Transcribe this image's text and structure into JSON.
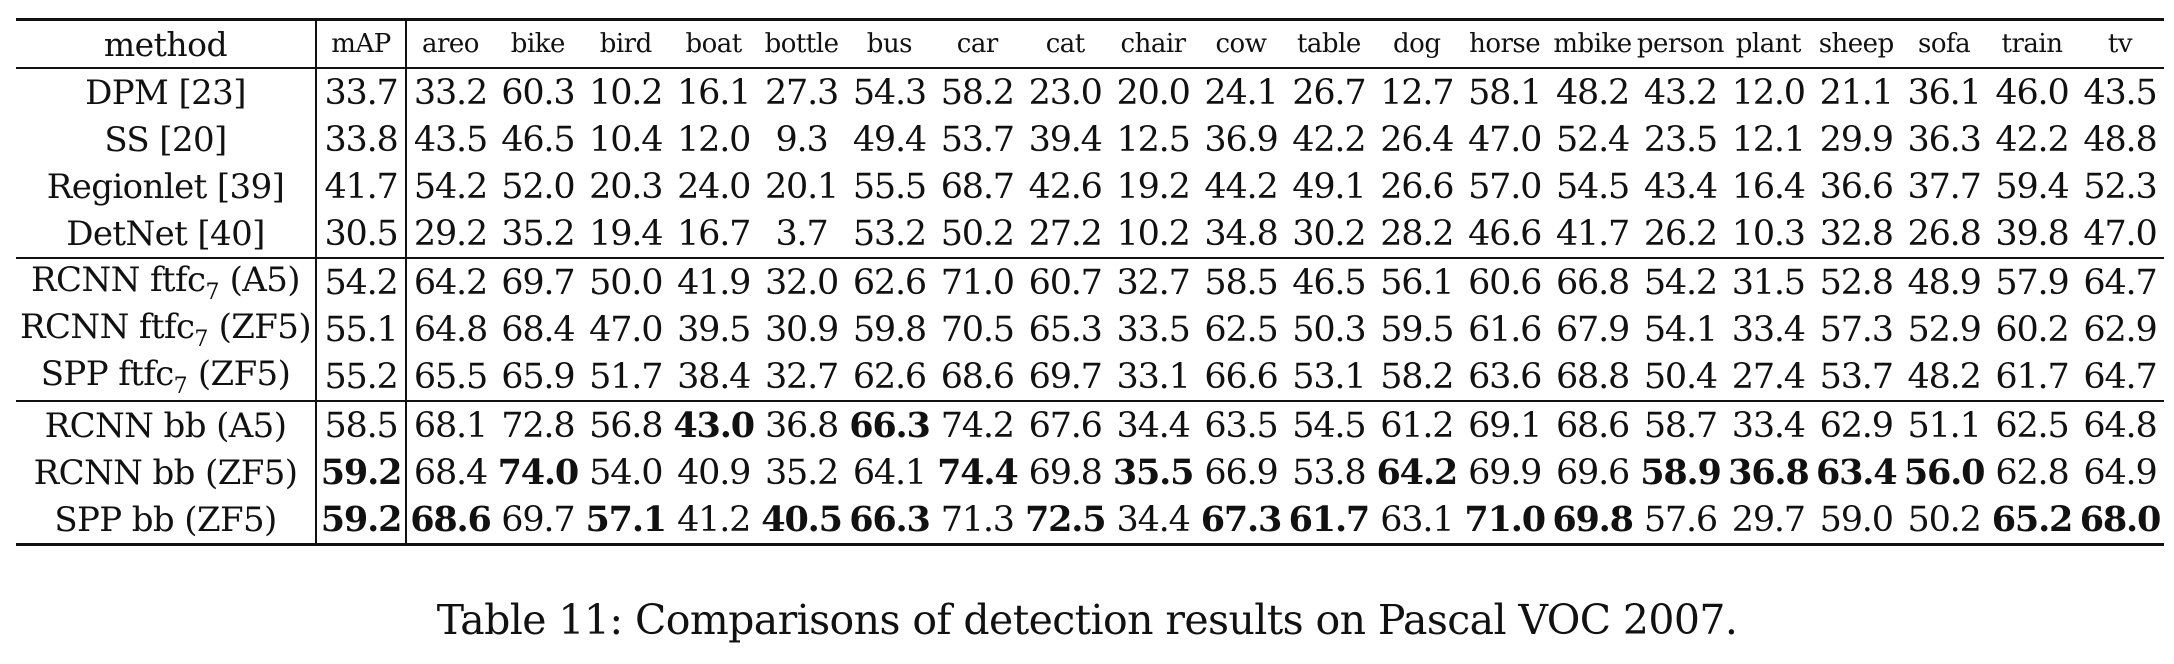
{
  "table": {
    "headers": [
      "method",
      "mAP",
      "areo",
      "bike",
      "bird",
      "boat",
      "bottle",
      "bus",
      "car",
      "cat",
      "chair",
      "cow",
      "table",
      "dog",
      "horse",
      "mbike",
      "person",
      "plant",
      "sheep",
      "sofa",
      "train",
      "tv"
    ],
    "groups": [
      {
        "rows": [
          {
            "method": "DPM [23]",
            "cells": [
              {
                "v": "33.7"
              },
              {
                "v": "33.2"
              },
              {
                "v": "60.3"
              },
              {
                "v": "10.2"
              },
              {
                "v": "16.1"
              },
              {
                "v": "27.3"
              },
              {
                "v": "54.3"
              },
              {
                "v": "58.2"
              },
              {
                "v": "23.0"
              },
              {
                "v": "20.0"
              },
              {
                "v": "24.1"
              },
              {
                "v": "26.7"
              },
              {
                "v": "12.7"
              },
              {
                "v": "58.1"
              },
              {
                "v": "48.2"
              },
              {
                "v": "43.2"
              },
              {
                "v": "12.0"
              },
              {
                "v": "21.1"
              },
              {
                "v": "36.1"
              },
              {
                "v": "46.0"
              },
              {
                "v": "43.5"
              }
            ]
          },
          {
            "method": "SS [20]",
            "cells": [
              {
                "v": "33.8"
              },
              {
                "v": "43.5"
              },
              {
                "v": "46.5"
              },
              {
                "v": "10.4"
              },
              {
                "v": "12.0"
              },
              {
                "v": "9.3"
              },
              {
                "v": "49.4"
              },
              {
                "v": "53.7"
              },
              {
                "v": "39.4"
              },
              {
                "v": "12.5"
              },
              {
                "v": "36.9"
              },
              {
                "v": "42.2"
              },
              {
                "v": "26.4"
              },
              {
                "v": "47.0"
              },
              {
                "v": "52.4"
              },
              {
                "v": "23.5"
              },
              {
                "v": "12.1"
              },
              {
                "v": "29.9"
              },
              {
                "v": "36.3"
              },
              {
                "v": "42.2"
              },
              {
                "v": "48.8"
              }
            ]
          },
          {
            "method": "Regionlet [39]",
            "cells": [
              {
                "v": "41.7"
              },
              {
                "v": "54.2"
              },
              {
                "v": "52.0"
              },
              {
                "v": "20.3"
              },
              {
                "v": "24.0"
              },
              {
                "v": "20.1"
              },
              {
                "v": "55.5"
              },
              {
                "v": "68.7"
              },
              {
                "v": "42.6"
              },
              {
                "v": "19.2"
              },
              {
                "v": "44.2"
              },
              {
                "v": "49.1"
              },
              {
                "v": "26.6"
              },
              {
                "v": "57.0"
              },
              {
                "v": "54.5"
              },
              {
                "v": "43.4"
              },
              {
                "v": "16.4"
              },
              {
                "v": "36.6"
              },
              {
                "v": "37.7"
              },
              {
                "v": "59.4"
              },
              {
                "v": "52.3"
              }
            ]
          },
          {
            "method": "DetNet [40]",
            "cells": [
              {
                "v": "30.5"
              },
              {
                "v": "29.2"
              },
              {
                "v": "35.2"
              },
              {
                "v": "19.4"
              },
              {
                "v": "16.7"
              },
              {
                "v": "3.7"
              },
              {
                "v": "53.2"
              },
              {
                "v": "50.2"
              },
              {
                "v": "27.2"
              },
              {
                "v": "10.2"
              },
              {
                "v": "34.8"
              },
              {
                "v": "30.2"
              },
              {
                "v": "28.2"
              },
              {
                "v": "46.6"
              },
              {
                "v": "41.7"
              },
              {
                "v": "26.2"
              },
              {
                "v": "10.3"
              },
              {
                "v": "32.8"
              },
              {
                "v": "26.8"
              },
              {
                "v": "39.8"
              },
              {
                "v": "47.0"
              }
            ]
          }
        ]
      },
      {
        "rows": [
          {
            "method": "RCNN ftfc",
            "method_sub": "7",
            "method_suffix": " (A5)",
            "cells": [
              {
                "v": "54.2"
              },
              {
                "v": "64.2"
              },
              {
                "v": "69.7"
              },
              {
                "v": "50.0"
              },
              {
                "v": "41.9"
              },
              {
                "v": "32.0"
              },
              {
                "v": "62.6"
              },
              {
                "v": "71.0"
              },
              {
                "v": "60.7"
              },
              {
                "v": "32.7"
              },
              {
                "v": "58.5"
              },
              {
                "v": "46.5"
              },
              {
                "v": "56.1"
              },
              {
                "v": "60.6"
              },
              {
                "v": "66.8"
              },
              {
                "v": "54.2"
              },
              {
                "v": "31.5"
              },
              {
                "v": "52.8"
              },
              {
                "v": "48.9"
              },
              {
                "v": "57.9"
              },
              {
                "v": "64.7"
              }
            ]
          },
          {
            "method": "RCNN ftfc",
            "method_sub": "7",
            "method_suffix": " (ZF5)",
            "cells": [
              {
                "v": "55.1"
              },
              {
                "v": "64.8"
              },
              {
                "v": "68.4"
              },
              {
                "v": "47.0"
              },
              {
                "v": "39.5"
              },
              {
                "v": "30.9"
              },
              {
                "v": "59.8"
              },
              {
                "v": "70.5"
              },
              {
                "v": "65.3"
              },
              {
                "v": "33.5"
              },
              {
                "v": "62.5"
              },
              {
                "v": "50.3"
              },
              {
                "v": "59.5"
              },
              {
                "v": "61.6"
              },
              {
                "v": "67.9"
              },
              {
                "v": "54.1"
              },
              {
                "v": "33.4"
              },
              {
                "v": "57.3"
              },
              {
                "v": "52.9"
              },
              {
                "v": "60.2"
              },
              {
                "v": "62.9"
              }
            ]
          },
          {
            "method": "SPP ftfc",
            "method_sub": "7",
            "method_suffix": " (ZF5)",
            "cells": [
              {
                "v": "55.2"
              },
              {
                "v": "65.5"
              },
              {
                "v": "65.9"
              },
              {
                "v": "51.7"
              },
              {
                "v": "38.4"
              },
              {
                "v": "32.7"
              },
              {
                "v": "62.6"
              },
              {
                "v": "68.6"
              },
              {
                "v": "69.7"
              },
              {
                "v": "33.1"
              },
              {
                "v": "66.6"
              },
              {
                "v": "53.1"
              },
              {
                "v": "58.2"
              },
              {
                "v": "63.6"
              },
              {
                "v": "68.8"
              },
              {
                "v": "50.4"
              },
              {
                "v": "27.4"
              },
              {
                "v": "53.7"
              },
              {
                "v": "48.2"
              },
              {
                "v": "61.7"
              },
              {
                "v": "64.7"
              }
            ]
          }
        ]
      },
      {
        "rows": [
          {
            "method": "RCNN bb (A5)",
            "cells": [
              {
                "v": "58.5"
              },
              {
                "v": "68.1"
              },
              {
                "v": "72.8"
              },
              {
                "v": "56.8"
              },
              {
                "v": "43.0",
                "b": true
              },
              {
                "v": "36.8"
              },
              {
                "v": "66.3",
                "b": true
              },
              {
                "v": "74.2"
              },
              {
                "v": "67.6"
              },
              {
                "v": "34.4"
              },
              {
                "v": "63.5"
              },
              {
                "v": "54.5"
              },
              {
                "v": "61.2"
              },
              {
                "v": "69.1"
              },
              {
                "v": "68.6"
              },
              {
                "v": "58.7"
              },
              {
                "v": "33.4"
              },
              {
                "v": "62.9"
              },
              {
                "v": "51.1"
              },
              {
                "v": "62.5"
              },
              {
                "v": "64.8"
              }
            ]
          },
          {
            "method": "RCNN bb (ZF5)",
            "cells": [
              {
                "v": "59.2",
                "b": true
              },
              {
                "v": "68.4"
              },
              {
                "v": "74.0",
                "b": true
              },
              {
                "v": "54.0"
              },
              {
                "v": "40.9"
              },
              {
                "v": "35.2"
              },
              {
                "v": "64.1"
              },
              {
                "v": "74.4",
                "b": true
              },
              {
                "v": "69.8"
              },
              {
                "v": "35.5",
                "b": true
              },
              {
                "v": "66.9"
              },
              {
                "v": "53.8"
              },
              {
                "v": "64.2",
                "b": true
              },
              {
                "v": "69.9"
              },
              {
                "v": "69.6"
              },
              {
                "v": "58.9",
                "b": true
              },
              {
                "v": "36.8",
                "b": true
              },
              {
                "v": "63.4",
                "b": true
              },
              {
                "v": "56.0",
                "b": true
              },
              {
                "v": "62.8"
              },
              {
                "v": "64.9"
              }
            ]
          },
          {
            "method": "SPP bb (ZF5)",
            "cells": [
              {
                "v": "59.2",
                "b": true
              },
              {
                "v": "68.6",
                "b": true
              },
              {
                "v": "69.7"
              },
              {
                "v": "57.1",
                "b": true
              },
              {
                "v": "41.2"
              },
              {
                "v": "40.5",
                "b": true
              },
              {
                "v": "66.3",
                "b": true
              },
              {
                "v": "71.3"
              },
              {
                "v": "72.5",
                "b": true
              },
              {
                "v": "34.4"
              },
              {
                "v": "67.3",
                "b": true
              },
              {
                "v": "61.7",
                "b": true
              },
              {
                "v": "63.1"
              },
              {
                "v": "71.0",
                "b": true
              },
              {
                "v": "69.8",
                "b": true
              },
              {
                "v": "57.6"
              },
              {
                "v": "29.7"
              },
              {
                "v": "59.0"
              },
              {
                "v": "50.2"
              },
              {
                "v": "65.2",
                "b": true
              },
              {
                "v": "68.0",
                "b": true
              }
            ]
          }
        ]
      }
    ]
  },
  "caption": "Table 11: Comparisons of detection results on Pascal VOC 2007."
}
